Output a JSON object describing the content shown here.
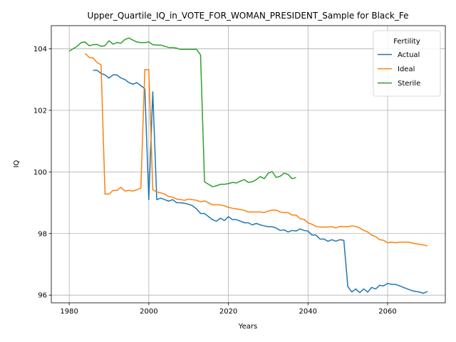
{
  "chart_data": {
    "type": "line",
    "title": "Upper_Quartile_IQ_in_VOTE_FOR_WOMAN_PRESIDENT_Sample for Black_Fe",
    "xlabel": "Years",
    "ylabel": "IQ",
    "xlim": [
      1975.5,
      2074.5
    ],
    "ylim": [
      95.75,
      104.75
    ],
    "xticks": [
      1980,
      2000,
      2020,
      2040,
      2060
    ],
    "yticks": [
      96,
      98,
      100,
      102,
      104
    ],
    "xtick_labels": [
      "1980",
      "2000",
      "2020",
      "2040",
      "2060"
    ],
    "ytick_labels": [
      "96",
      "98",
      "100",
      "102",
      "104"
    ],
    "grid": true,
    "legend": {
      "title": "Fertility",
      "placement": "top-right"
    },
    "series": [
      {
        "name": "Actual",
        "color": "#1f77b4",
        "x": [
          1986,
          1987,
          1988,
          1989,
          1990,
          1991,
          1992,
          1993,
          1994,
          1995,
          1996,
          1997,
          1998,
          1999,
          2000,
          2001,
          2002,
          2003,
          2004,
          2005,
          2006,
          2007,
          2008,
          2009,
          2010,
          2011,
          2012,
          2013,
          2014,
          2015,
          2016,
          2017,
          2018,
          2019,
          2020,
          2021,
          2022,
          2023,
          2024,
          2025,
          2026,
          2027,
          2028,
          2029,
          2030,
          2031,
          2032,
          2033,
          2034,
          2035,
          2036,
          2037,
          2038,
          2039,
          2040,
          2041,
          2042,
          2043,
          2044,
          2045,
          2046,
          2047,
          2048,
          2049,
          2050,
          2051,
          2052,
          2053,
          2054,
          2055,
          2056,
          2057,
          2058,
          2059,
          2060,
          2061,
          2062,
          2063,
          2064,
          2065,
          2066,
          2067,
          2068,
          2069,
          2070
        ],
        "values": [
          103.3,
          103.3,
          103.2,
          103.15,
          103.05,
          103.15,
          103.15,
          103.05,
          103.0,
          102.9,
          102.85,
          102.9,
          102.8,
          102.7,
          99.1,
          102.6,
          99.1,
          99.15,
          99.1,
          99.05,
          99.1,
          99.0,
          99.0,
          98.98,
          98.95,
          98.9,
          98.8,
          98.65,
          98.65,
          98.55,
          98.45,
          98.4,
          98.5,
          98.42,
          98.55,
          98.45,
          98.45,
          98.4,
          98.35,
          98.35,
          98.28,
          98.33,
          98.28,
          98.25,
          98.22,
          98.22,
          98.18,
          98.1,
          98.12,
          98.05,
          98.1,
          98.08,
          98.15,
          98.1,
          98.08,
          97.95,
          97.95,
          97.82,
          97.82,
          97.75,
          97.8,
          97.75,
          97.8,
          97.78,
          96.28,
          96.1,
          96.2,
          96.08,
          96.2,
          96.1,
          96.25,
          96.2,
          96.32,
          96.3,
          96.38,
          96.35,
          96.35,
          96.3,
          96.25,
          96.2,
          96.15,
          96.12,
          96.1,
          96.06,
          96.12
        ]
      },
      {
        "name": "Ideal",
        "color": "#ff7f0e",
        "x": [
          1984,
          1985,
          1986,
          1987,
          1988,
          1989,
          1990,
          1991,
          1992,
          1993,
          1994,
          1995,
          1996,
          1997,
          1998,
          1999,
          2000,
          2001,
          2002,
          2003,
          2004,
          2005,
          2006,
          2007,
          2008,
          2009,
          2010,
          2011,
          2012,
          2013,
          2014,
          2015,
          2016,
          2017,
          2018,
          2019,
          2020,
          2021,
          2022,
          2023,
          2024,
          2025,
          2026,
          2027,
          2028,
          2029,
          2030,
          2031,
          2032,
          2033,
          2034,
          2035,
          2036,
          2037,
          2038,
          2039,
          2040,
          2041,
          2042,
          2043,
          2044,
          2045,
          2046,
          2047,
          2048,
          2049,
          2050,
          2051,
          2052,
          2053,
          2054,
          2055,
          2056,
          2057,
          2058,
          2059,
          2060,
          2061,
          2062,
          2063,
          2064,
          2065,
          2066,
          2067,
          2068,
          2069,
          2070
        ],
        "values": [
          103.85,
          103.72,
          103.7,
          103.55,
          103.48,
          99.28,
          99.28,
          99.4,
          99.4,
          99.5,
          99.38,
          99.4,
          99.38,
          99.42,
          99.48,
          103.32,
          103.32,
          99.42,
          99.35,
          99.32,
          99.28,
          99.2,
          99.18,
          99.12,
          99.1,
          99.08,
          99.12,
          99.1,
          99.08,
          99.03,
          99.06,
          99.0,
          98.93,
          98.93,
          98.93,
          98.9,
          98.85,
          98.82,
          98.8,
          98.78,
          98.75,
          98.7,
          98.7,
          98.7,
          98.7,
          98.68,
          98.73,
          98.76,
          98.76,
          98.7,
          98.68,
          98.68,
          98.6,
          98.6,
          98.48,
          98.46,
          98.35,
          98.3,
          98.23,
          98.21,
          98.21,
          98.21,
          98.22,
          98.18,
          98.23,
          98.22,
          98.22,
          98.25,
          98.23,
          98.18,
          98.1,
          98.05,
          97.95,
          97.9,
          97.8,
          97.78,
          97.7,
          97.72,
          97.7,
          97.72,
          97.72,
          97.72,
          97.7,
          97.67,
          97.65,
          97.63,
          97.6
        ]
      },
      {
        "name": "Sterile",
        "color": "#2ca02c",
        "x": [
          1980,
          1981,
          1982,
          1983,
          1984,
          1985,
          1986,
          1987,
          1988,
          1989,
          1990,
          1991,
          1992,
          1993,
          1994,
          1995,
          1996,
          1997,
          1998,
          1999,
          2000,
          2001,
          2002,
          2003,
          2004,
          2005,
          2006,
          2007,
          2008,
          2009,
          2010,
          2011,
          2012,
          2013,
          2014,
          2015,
          2016,
          2017,
          2018,
          2019,
          2020,
          2021,
          2022,
          2023,
          2024,
          2025,
          2026,
          2027,
          2028,
          2029,
          2030,
          2031,
          2032,
          2033,
          2034,
          2035,
          2036,
          2037
        ],
        "values": [
          103.92,
          104.0,
          104.08,
          104.2,
          104.22,
          104.1,
          104.13,
          104.14,
          104.08,
          104.1,
          104.26,
          104.15,
          104.2,
          104.18,
          104.3,
          104.35,
          104.28,
          104.22,
          104.2,
          104.2,
          104.22,
          104.13,
          104.12,
          104.12,
          104.08,
          104.04,
          104.04,
          104.02,
          103.98,
          103.98,
          103.98,
          103.98,
          103.98,
          103.8,
          99.68,
          99.6,
          99.52,
          99.55,
          99.6,
          99.6,
          99.62,
          99.66,
          99.64,
          99.7,
          99.75,
          99.66,
          99.68,
          99.75,
          99.85,
          99.78,
          99.96,
          100.01,
          99.82,
          99.86,
          99.96,
          99.92,
          99.78,
          99.82
        ]
      }
    ]
  }
}
